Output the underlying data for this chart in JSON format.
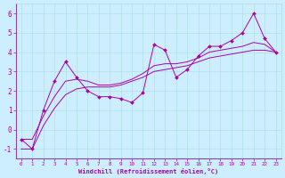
{
  "xlabel": "Windchill (Refroidissement éolien,°C)",
  "bg_color": "#cceeff",
  "line_color": "#aa00aa",
  "hours": [
    0,
    1,
    2,
    3,
    4,
    5,
    6,
    7,
    8,
    9,
    10,
    11,
    12,
    13,
    14,
    15,
    16,
    17,
    18,
    19,
    20,
    21,
    22,
    23
  ],
  "wc_values": [
    -0.5,
    -1.0,
    1.0,
    2.5,
    3.5,
    2.7,
    2.0,
    1.7,
    1.7,
    1.6,
    1.4,
    1.9,
    4.4,
    4.1,
    2.7,
    3.1,
    3.8,
    4.3,
    4.3,
    4.6,
    5.0,
    6.0,
    4.7,
    4.0
  ],
  "smooth_line1": [
    -1.0,
    -1.0,
    0.2,
    1.1,
    1.8,
    2.1,
    2.2,
    2.2,
    2.2,
    2.3,
    2.5,
    2.7,
    3.0,
    3.1,
    3.2,
    3.3,
    3.5,
    3.7,
    3.8,
    3.9,
    4.0,
    4.1,
    4.1,
    4.0
  ],
  "smooth_line2": [
    -0.5,
    -0.5,
    0.7,
    1.7,
    2.5,
    2.6,
    2.5,
    2.3,
    2.3,
    2.4,
    2.6,
    2.9,
    3.3,
    3.4,
    3.4,
    3.5,
    3.7,
    4.0,
    4.1,
    4.2,
    4.3,
    4.5,
    4.4,
    4.0
  ],
  "ylim": [
    -1.5,
    6.5
  ],
  "xlim": [
    -0.5,
    23.5
  ],
  "yticks": [
    -1,
    0,
    1,
    2,
    3,
    4,
    5,
    6
  ],
  "xticks": [
    0,
    1,
    2,
    3,
    4,
    5,
    6,
    7,
    8,
    9,
    10,
    11,
    12,
    13,
    14,
    15,
    16,
    17,
    18,
    19,
    20,
    21,
    22,
    23
  ],
  "grid_color": "#aadddd",
  "spine_color": "#8844aa"
}
